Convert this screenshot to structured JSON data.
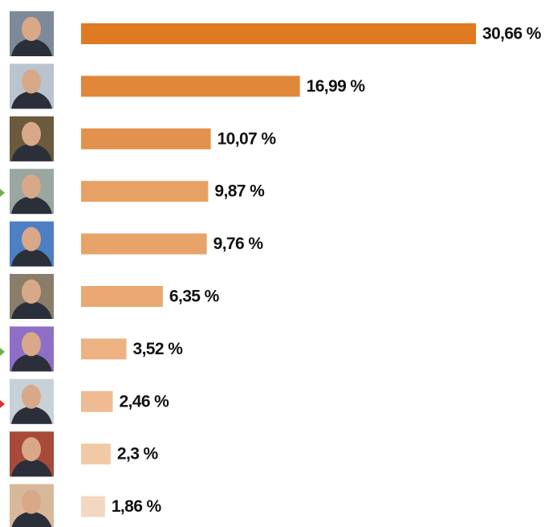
{
  "chart_data": {
    "type": "hbar",
    "categories": [
      null,
      null,
      null,
      null,
      null,
      null,
      null,
      null,
      null,
      null
    ],
    "values": [
      30.66,
      16.99,
      10.07,
      9.87,
      9.76,
      6.35,
      3.52,
      2.46,
      2.3,
      1.86
    ],
    "value_labels": [
      "30,66 %",
      "16,99 %",
      "10,07 %",
      "9,87 %",
      "9,76 %",
      "6,35 %",
      "3,52 %",
      "2,46 %",
      "2,3 %",
      "1,86 %"
    ],
    "colors": [
      "#e07a22",
      "#e0873a",
      "#e3924e",
      "#e8a165",
      "#e8a369",
      "#eaa972",
      "#edb282",
      "#efbb92",
      "#f2c9a7",
      "#f4d7c0"
    ]
  }
}
